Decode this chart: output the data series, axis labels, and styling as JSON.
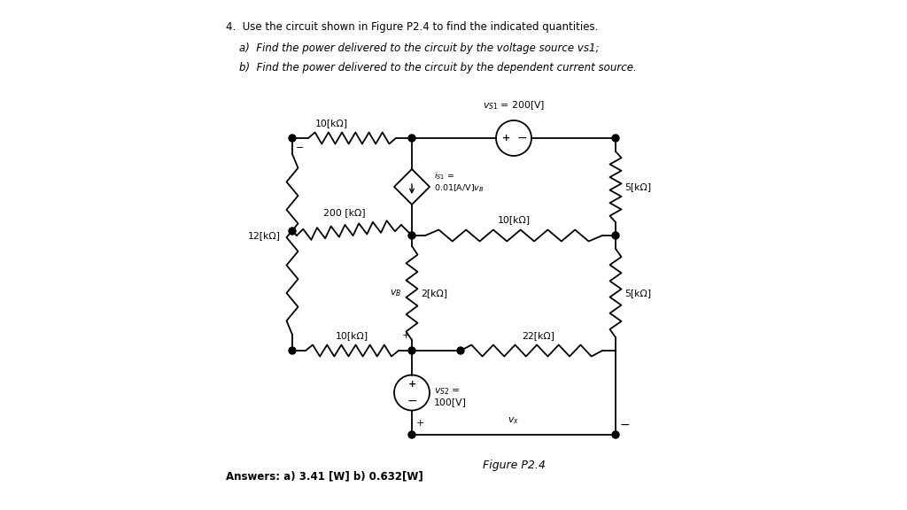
{
  "title_text": "4.  Use the circuit shown in Figure P2.4 to find the indicated quantities.",
  "subtitle_a": "    a)  Find the power delivered to the circuit by the voltage source vs1;",
  "subtitle_b": "    b)  Find the power delivered to the circuit by the dependent current source.",
  "figure_label": "Figure P2.4",
  "answers": "Answers: a) 3.41 [W] b) 0.632[W]",
  "bg_color": "#ffffff",
  "line_color": "#000000"
}
